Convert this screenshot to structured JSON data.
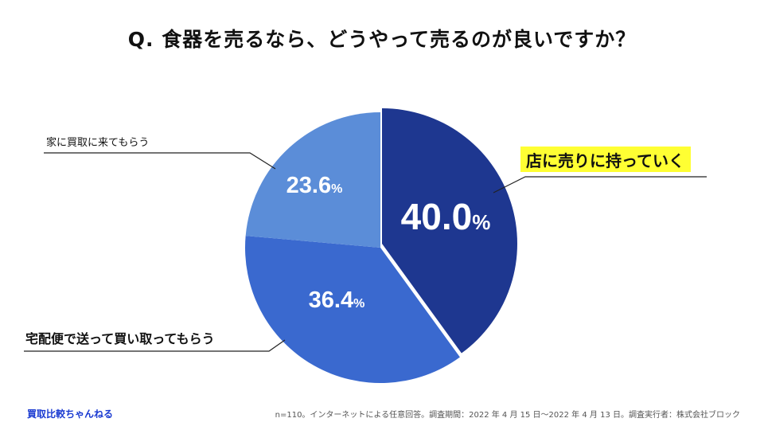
{
  "title": "Q. 食器を売るなら、どうやって売るのが良いですか？",
  "chart_data": {
    "type": "pie",
    "title": "Q. 食器を売るなら、どうやって売るのが良いですか？",
    "unit": "%",
    "slices": [
      {
        "label": "店に売りに持っていく",
        "value": 40.0,
        "value_text": "40.0",
        "color": "#1e3790"
      },
      {
        "label": "宅配便で送って買い取ってもらう",
        "value": 36.4,
        "value_text": "36.4",
        "color": "#3a69cf"
      },
      {
        "label": "家に買取に来てもらう",
        "value": 23.6,
        "value_text": "23.6",
        "color": "#5b8dd8"
      }
    ],
    "highlight_color": "#ffff33"
  },
  "footer": {
    "brand": "買取比較ちゃんねる",
    "note": "n=110。インターネットによる任意回答。調査期間：2022 年 4 月 15 日〜2022 年 4 月 13 日。調査実行者：株式会社ブロック"
  }
}
